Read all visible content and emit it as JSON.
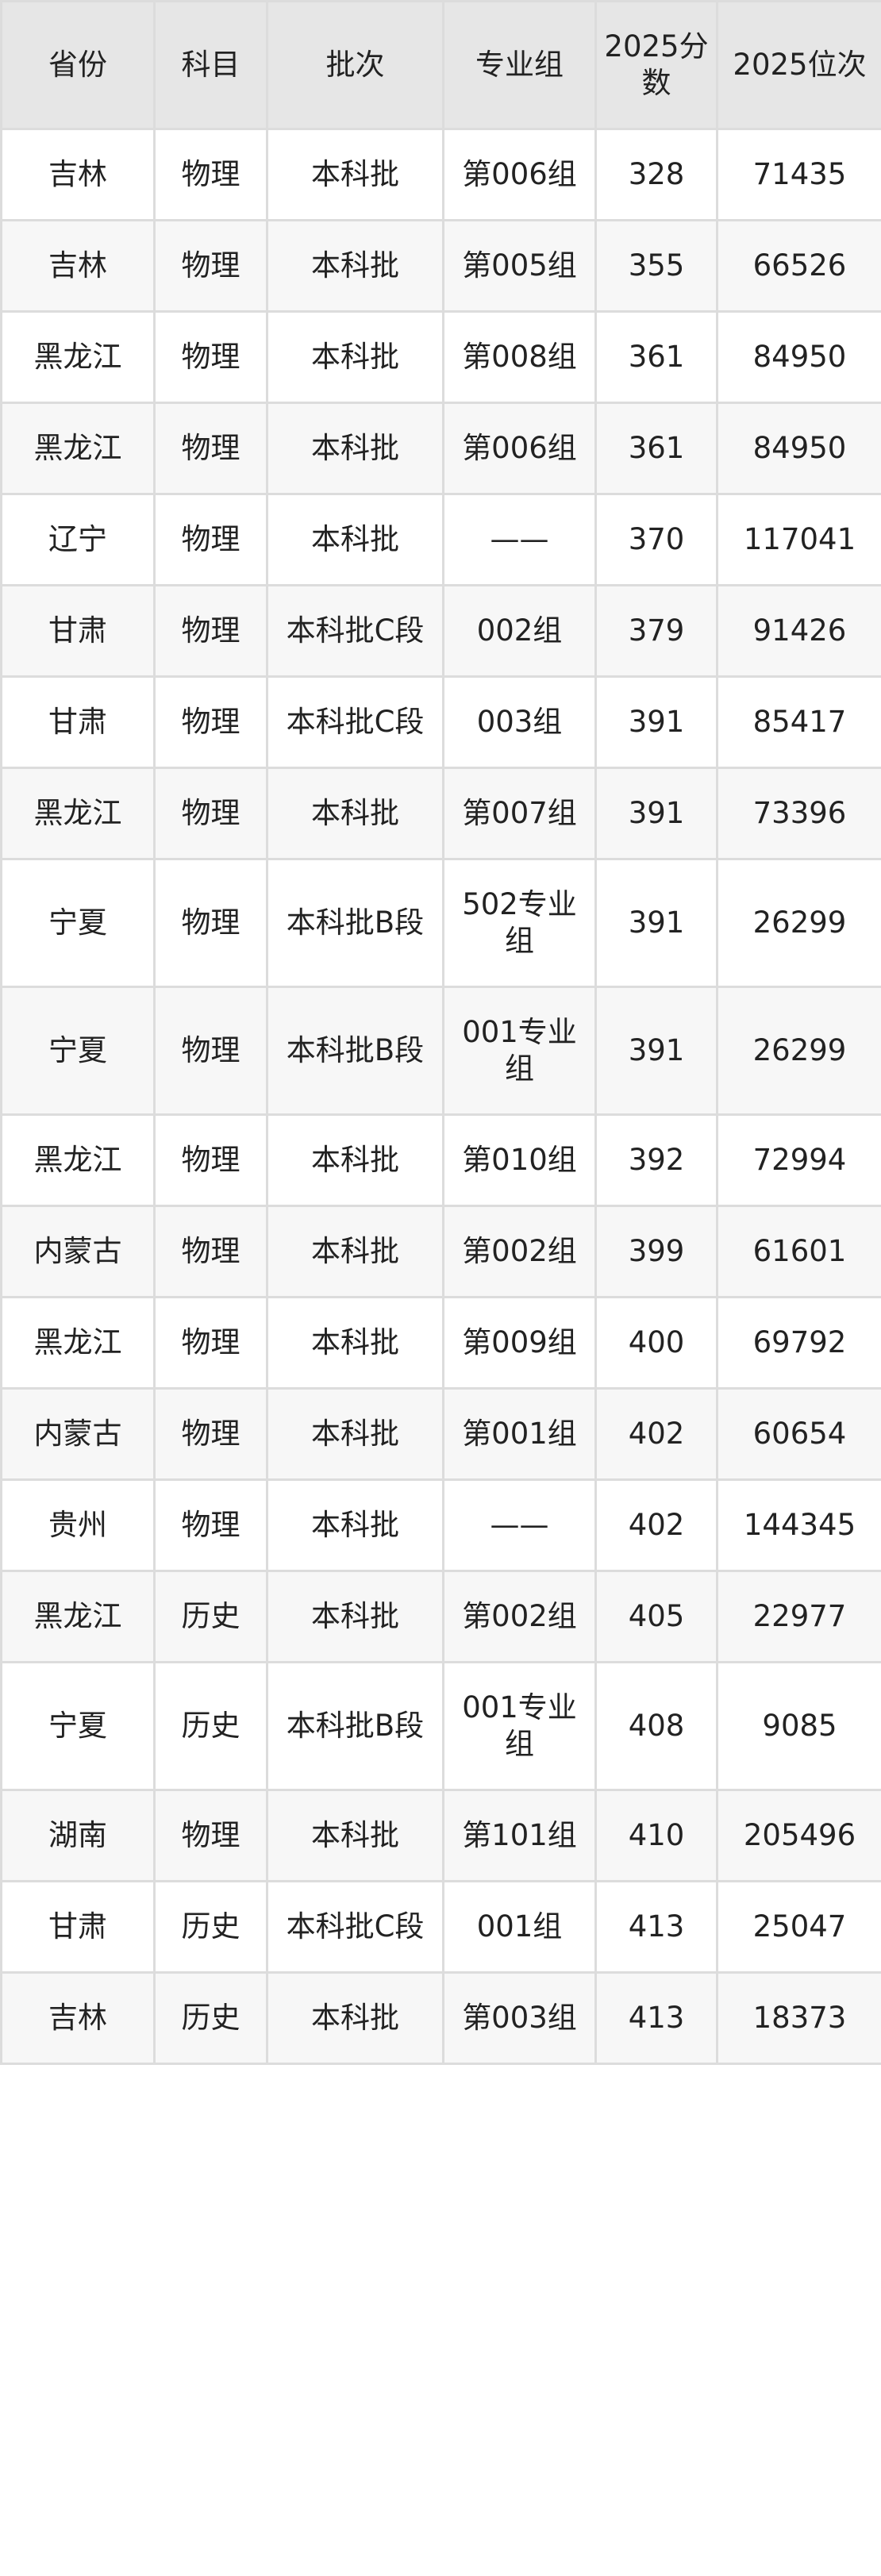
{
  "headers": [
    "省份",
    "科目",
    "批次",
    "专业组",
    "2025分数",
    "2025位次"
  ],
  "rows": [
    [
      "吉林",
      "物理",
      "本科批",
      "第006组",
      "328",
      "71435"
    ],
    [
      "吉林",
      "物理",
      "本科批",
      "第005组",
      "355",
      "66526"
    ],
    [
      "黑龙江",
      "物理",
      "本科批",
      "第008组",
      "361",
      "84950"
    ],
    [
      "黑龙江",
      "物理",
      "本科批",
      "第006组",
      "361",
      "84950"
    ],
    [
      "辽宁",
      "物理",
      "本科批",
      "——",
      "370",
      "117041"
    ],
    [
      "甘肃",
      "物理",
      "本科批C段",
      "002组",
      "379",
      "91426"
    ],
    [
      "甘肃",
      "物理",
      "本科批C段",
      "003组",
      "391",
      "85417"
    ],
    [
      "黑龙江",
      "物理",
      "本科批",
      "第007组",
      "391",
      "73396"
    ],
    [
      "宁夏",
      "物理",
      "本科批B段",
      "502专业组",
      "391",
      "26299"
    ],
    [
      "宁夏",
      "物理",
      "本科批B段",
      "001专业组",
      "391",
      "26299"
    ],
    [
      "黑龙江",
      "物理",
      "本科批",
      "第010组",
      "392",
      "72994"
    ],
    [
      "内蒙古",
      "物理",
      "本科批",
      "第002组",
      "399",
      "61601"
    ],
    [
      "黑龙江",
      "物理",
      "本科批",
      "第009组",
      "400",
      "69792"
    ],
    [
      "内蒙古",
      "物理",
      "本科批",
      "第001组",
      "402",
      "60654"
    ],
    [
      "贵州",
      "物理",
      "本科批",
      "——",
      "402",
      "144345"
    ],
    [
      "黑龙江",
      "历史",
      "本科批",
      "第002组",
      "405",
      "22977"
    ],
    [
      "宁夏",
      "历史",
      "本科批B段",
      "001专业组",
      "408",
      "9085"
    ],
    [
      "湖南",
      "物理",
      "本科批",
      "第101组",
      "410",
      "205496"
    ],
    [
      "甘肃",
      "历史",
      "本科批C段",
      "001组",
      "413",
      "25047"
    ],
    [
      "吉林",
      "历史",
      "本科批",
      "第003组",
      "413",
      "18373"
    ]
  ]
}
